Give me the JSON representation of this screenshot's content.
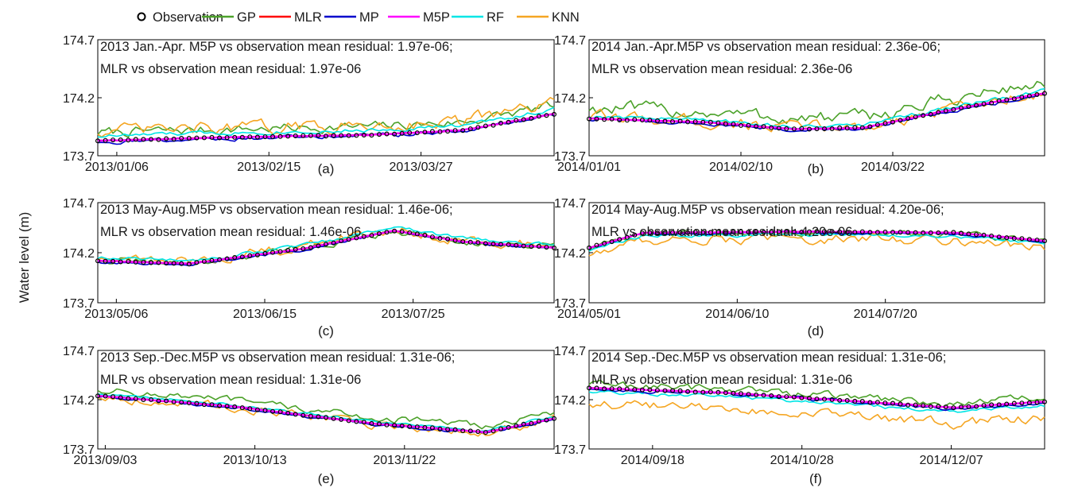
{
  "figure": {
    "y_axis_label": "Water level (m)",
    "legend": [
      {
        "name": "Observation",
        "color": "#000000",
        "marker": "circle-icon"
      },
      {
        "name": "GP",
        "color": "#4ca22a"
      },
      {
        "name": "MLR",
        "color": "#ff0000"
      },
      {
        "name": "MP",
        "color": "#0000cc"
      },
      {
        "name": "M5P",
        "color": "#ff00ff"
      },
      {
        "name": "RF",
        "color": "#00e5e5"
      },
      {
        "name": "KNN",
        "color": "#f5a623"
      }
    ]
  },
  "chart_data": [
    {
      "type": "line",
      "id": "a",
      "sublabel": "(a)",
      "annotation": [
        "2013 Jan.-Apr. M5P vs observation mean residual: 1.97e-06;",
        "MLR vs observation mean residual: 1.97e-06"
      ],
      "xlim": [
        "2013-01-01",
        "2013-05-01"
      ],
      "xticks": [
        "2013/01/06",
        "2013/02/15",
        "2013/03/27"
      ],
      "ylim": [
        173.7,
        174.7
      ],
      "yticks": [
        "173.7",
        "174.2",
        "174.7"
      ],
      "obs": [
        [
          0,
          173.83
        ],
        [
          0.3,
          173.86
        ],
        [
          0.6,
          173.88
        ],
        [
          0.8,
          173.92
        ],
        [
          1,
          174.06
        ]
      ],
      "offsets": {
        "GP": 0.07,
        "RF": 0.04,
        "KNN": 0.08,
        "MP": -0.01
      },
      "noise": {
        "GP": 0.035,
        "KNN": 0.045,
        "RF": 0.015,
        "MP": 0.015
      }
    },
    {
      "type": "line",
      "id": "b",
      "sublabel": "(b)",
      "annotation": [
        "2014 Jan.-Apr.M5P vs observation mean residual: 2.36e-06;",
        "MLR vs observation mean residual: 2.36e-06"
      ],
      "xlim": [
        "2014-01-01",
        "2014-05-01"
      ],
      "xticks": [
        "2014/01/01",
        "2014/02/10",
        "2014/03/22"
      ],
      "ylim": [
        173.7,
        174.7
      ],
      "yticks": [
        "173.7",
        "174.2",
        "174.7"
      ],
      "obs": [
        [
          0,
          174.02
        ],
        [
          0.25,
          173.99
        ],
        [
          0.45,
          173.93
        ],
        [
          0.6,
          173.94
        ],
        [
          0.8,
          174.1
        ],
        [
          1,
          174.24
        ]
      ],
      "offsets": {
        "GP": 0.09,
        "RF": 0.02,
        "KNN": 0.01,
        "MP": -0.01
      },
      "noise": {
        "GP": 0.05,
        "KNN": 0.045,
        "RF": 0.015,
        "MP": 0.012
      }
    },
    {
      "type": "line",
      "id": "c",
      "sublabel": "(c)",
      "annotation": [
        "2013 May-Aug.M5P vs observation mean residual: 1.46e-06;",
        "MLR vs observation mean residual: 1.46e-06"
      ],
      "xlim": [
        "2013-05-01",
        "2013-09-01"
      ],
      "xticks": [
        "2013/05/06",
        "2013/06/15",
        "2013/07/25"
      ],
      "ylim": [
        173.7,
        174.7
      ],
      "yticks": [
        "173.7",
        "174.2",
        "174.7"
      ],
      "obs": [
        [
          0,
          174.12
        ],
        [
          0.2,
          174.09
        ],
        [
          0.45,
          174.24
        ],
        [
          0.65,
          174.42
        ],
        [
          0.8,
          174.31
        ],
        [
          1,
          174.25
        ]
      ],
      "offsets": {
        "GP": 0.0,
        "RF": 0.03,
        "KNN": 0.02,
        "MP": -0.01
      },
      "noise": {
        "GP": 0.03,
        "KNN": 0.04,
        "RF": 0.015,
        "MP": 0.012
      }
    },
    {
      "type": "line",
      "id": "d",
      "sublabel": "(d)",
      "annotation": [
        "2014 May-Aug.M5P vs observation mean residual: 4.20e-06;",
        "MLR vs observation mean residual: 4.20e-06"
      ],
      "xlim": [
        "2014-05-01",
        "2014-09-01"
      ],
      "xticks": [
        "2014/05/01",
        "2014/06/10",
        "2014/07/20"
      ],
      "ylim": [
        173.7,
        174.7
      ],
      "yticks": [
        "173.7",
        "174.2",
        "174.7"
      ],
      "obs": [
        [
          0,
          174.25
        ],
        [
          0.12,
          174.4
        ],
        [
          0.5,
          174.41
        ],
        [
          0.8,
          174.4
        ],
        [
          1,
          174.32
        ]
      ],
      "offsets": {
        "GP": -0.01,
        "RF": -0.03,
        "KNN": -0.07,
        "MP": -0.01
      },
      "noise": {
        "GP": 0.025,
        "KNN": 0.04,
        "RF": 0.015,
        "MP": 0.01
      }
    },
    {
      "type": "line",
      "id": "e",
      "sublabel": "(e)",
      "annotation": [
        "2013 Sep.-Dec.M5P vs observation mean residual: 1.31e-06;",
        "MLR vs observation mean residual: 1.31e-06"
      ],
      "xlim": [
        "2013-09-01",
        "2014-01-01"
      ],
      "xticks": [
        "2013/09/03",
        "2013/10/13",
        "2013/11/22"
      ],
      "ylim": [
        173.7,
        174.7
      ],
      "yticks": [
        "173.7",
        "174.2",
        "174.7"
      ],
      "obs": [
        [
          0,
          174.24
        ],
        [
          0.3,
          174.13
        ],
        [
          0.6,
          173.96
        ],
        [
          0.85,
          173.87
        ],
        [
          1,
          174.01
        ]
      ],
      "offsets": {
        "GP": 0.06,
        "RF": 0.02,
        "KNN": -0.01,
        "MP": -0.01
      },
      "noise": {
        "GP": 0.03,
        "KNN": 0.035,
        "RF": 0.012,
        "MP": 0.012
      }
    },
    {
      "type": "line",
      "id": "f",
      "sublabel": "(f)",
      "annotation": [
        "2014 Sep.-Dec.M5P vs observation mean residual: 1.31e-06;",
        "MLR vs observation mean residual: 1.31e-06"
      ],
      "xlim": [
        "2014-09-01",
        "2015-01-01"
      ],
      "xticks": [
        "2014/09/18",
        "2014/10/28",
        "2014/12/07"
      ],
      "ylim": [
        173.7,
        174.7
      ],
      "yticks": [
        "173.7",
        "174.2",
        "174.7"
      ],
      "obs": [
        [
          0,
          174.32
        ],
        [
          0.3,
          174.27
        ],
        [
          0.6,
          174.18
        ],
        [
          0.8,
          174.12
        ],
        [
          1,
          174.18
        ]
      ],
      "offsets": {
        "GP": 0.04,
        "RF": -0.04,
        "KNN": -0.16,
        "MP": -0.01
      },
      "noise": {
        "GP": 0.035,
        "KNN": 0.04,
        "RF": 0.015,
        "MP": 0.015
      }
    }
  ]
}
